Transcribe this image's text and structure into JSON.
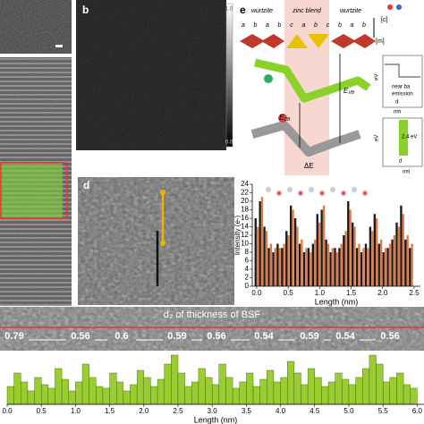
{
  "panel_labels": [
    "b",
    "d",
    "e"
  ],
  "colorbar": {
    "max": "1.0",
    "min": "0.0"
  },
  "diagram_e": {
    "phases": [
      "wurtzite",
      "zinc blend",
      "wurtzite"
    ],
    "stacking": [
      "a",
      "b",
      "a",
      "b",
      "c",
      "a",
      "b",
      "c",
      "b",
      "a",
      "b"
    ],
    "directions": [
      "[c]",
      "[m]"
    ],
    "e_cb": {
      "symbol": "E",
      "sub": "CB"
    },
    "e_vb": {
      "symbol": "E",
      "sub": "VB"
    },
    "delta_e": "ΔE",
    "top_plot": {
      "y_unit": "eV",
      "x_unit": "nm",
      "note": [
        "near ba",
        "emission"
      ],
      "mark": "d"
    },
    "bottom_plot": {
      "y_unit": "eV",
      "x_unit": "nm",
      "gap": "2.4 eV",
      "mark": "d"
    }
  },
  "bsf": {
    "caption": "d₂ of thickness of BSF",
    "widths": [
      "0.79",
      "0.56",
      "0.6",
      "0.59",
      "0.56",
      "0.54",
      "0.59",
      "0.54",
      "0.56"
    ]
  },
  "chart_data": [
    {
      "type": "bar",
      "ylabel": "Intensity (e-)",
      "xlabel": "Length (nm)",
      "x": [
        0,
        0.07,
        0.14,
        0.21,
        0.28,
        0.35,
        0.42,
        0.49,
        0.56,
        0.63,
        0.7,
        0.77,
        0.84,
        0.91,
        0.98,
        1.05,
        1.12,
        1.19,
        1.26,
        1.33,
        1.4,
        1.47,
        1.54,
        1.61,
        1.68,
        1.75,
        1.82,
        1.89,
        1.96,
        2.03,
        2.1,
        2.17,
        2.24,
        2.31,
        2.38,
        2.45
      ],
      "series": [
        {
          "color": "#1a1a1a",
          "values": [
            16,
            20,
            14,
            9,
            8,
            10,
            9,
            13,
            19,
            16,
            10,
            8,
            9,
            10,
            17,
            18,
            11,
            8,
            9,
            9,
            12,
            20,
            15,
            9,
            8,
            10,
            14,
            17,
            10,
            8,
            9,
            11,
            15,
            19,
            11,
            9
          ]
        },
        {
          "color": "#e07a4a",
          "values": [
            14,
            21,
            13,
            10,
            9,
            9,
            10,
            12,
            18,
            14,
            11,
            9,
            8,
            11,
            15,
            19,
            10,
            9,
            8,
            10,
            13,
            18,
            14,
            10,
            9,
            9,
            13,
            16,
            11,
            9,
            10,
            12,
            14,
            17,
            12,
            10
          ]
        }
      ],
      "xlim": [
        -0.07,
        2.6
      ],
      "ylim": [
        0,
        24
      ],
      "xticks": [
        {
          "value": 0,
          "label": "0.0"
        },
        0.5,
        {
          "value": 1,
          "label": "1.0"
        },
        1.5,
        {
          "value": 2,
          "label": "2.0"
        },
        2.5
      ],
      "yticks": [
        0,
        2,
        4,
        6,
        8,
        10,
        12,
        14,
        16,
        18,
        20,
        22,
        24
      ]
    },
    {
      "type": "bar",
      "xlabel": "Length (nm)",
      "color": "#9acd32",
      "x": [
        0.05,
        0.15,
        0.25,
        0.35,
        0.45,
        0.55,
        0.65,
        0.75,
        0.85,
        0.95,
        1.05,
        1.15,
        1.25,
        1.35,
        1.45,
        1.55,
        1.65,
        1.75,
        1.85,
        1.95,
        2.05,
        2.15,
        2.25,
        2.35,
        2.45,
        2.55,
        2.65,
        2.75,
        2.85,
        2.95,
        3.05,
        3.15,
        3.25,
        3.35,
        3.45,
        3.55,
        3.65,
        3.75,
        3.85,
        3.95,
        4.05,
        4.15,
        4.25,
        4.35,
        4.45,
        4.55,
        4.65,
        4.75,
        4.85,
        4.95,
        5.05,
        5.15,
        5.25,
        5.35,
        5.45,
        5.55,
        5.65,
        5.75,
        5.85,
        5.95
      ],
      "values": [
        20,
        35,
        25,
        15,
        30,
        22,
        18,
        40,
        28,
        15,
        25,
        45,
        30,
        20,
        18,
        35,
        25,
        15,
        22,
        38,
        30,
        20,
        28,
        45,
        55,
        35,
        20,
        25,
        40,
        30,
        22,
        45,
        30,
        18,
        25,
        35,
        20,
        28,
        38,
        25,
        30,
        48,
        35,
        22,
        40,
        30,
        20,
        25,
        35,
        28,
        22,
        30,
        40,
        55,
        45,
        25,
        30,
        35,
        22,
        18
      ],
      "xlim": [
        0,
        6.1
      ],
      "ylim": [
        0,
        60
      ],
      "xticks": [
        {
          "value": 0,
          "label": "0.0"
        },
        0.5,
        {
          "value": 1,
          "label": "1.0"
        },
        1.5,
        {
          "value": 2,
          "label": "2.0"
        },
        2.5,
        {
          "value": 3,
          "label": "3.0"
        },
        3.5,
        {
          "value": 4,
          "label": "4.0"
        },
        4.5,
        {
          "value": 5,
          "label": "5.0"
        },
        5.5,
        {
          "value": 6,
          "label": "6.0"
        }
      ]
    }
  ]
}
